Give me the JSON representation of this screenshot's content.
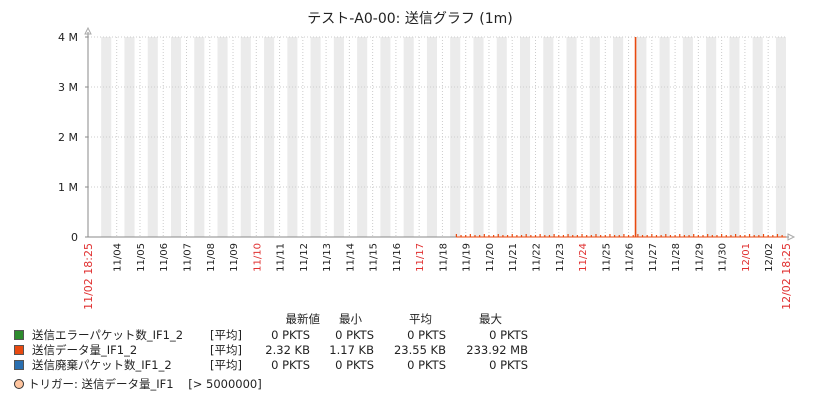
{
  "chart_data": {
    "type": "line",
    "title": "テスト-A0-00: 送信グラフ (1m)",
    "y_ticks": [
      "0",
      "1 M",
      "2 M",
      "3 M",
      "4 M"
    ],
    "ylim": [
      0,
      4000000
    ],
    "x_range": [
      "11/02 18:25",
      "12/02 18:25"
    ],
    "x_tick_labels": [
      {
        "label": "11/04",
        "day": 4,
        "weekend": false
      },
      {
        "label": "11/05",
        "day": 5,
        "weekend": false
      },
      {
        "label": "11/06",
        "day": 6,
        "weekend": false
      },
      {
        "label": "11/07",
        "day": 7,
        "weekend": false
      },
      {
        "label": "11/08",
        "day": 8,
        "weekend": false
      },
      {
        "label": "11/09",
        "day": 9,
        "weekend": false
      },
      {
        "label": "11/10",
        "day": 10,
        "weekend": true
      },
      {
        "label": "11/11",
        "day": 11,
        "weekend": false
      },
      {
        "label": "11/12",
        "day": 12,
        "weekend": false
      },
      {
        "label": "11/13",
        "day": 13,
        "weekend": false
      },
      {
        "label": "11/14",
        "day": 14,
        "weekend": false
      },
      {
        "label": "11/15",
        "day": 15,
        "weekend": false
      },
      {
        "label": "11/16",
        "day": 16,
        "weekend": false
      },
      {
        "label": "11/17",
        "day": 17,
        "weekend": true
      },
      {
        "label": "11/18",
        "day": 18,
        "weekend": false
      },
      {
        "label": "11/19",
        "day": 19,
        "weekend": false
      },
      {
        "label": "11/20",
        "day": 20,
        "weekend": false
      },
      {
        "label": "11/21",
        "day": 21,
        "weekend": false
      },
      {
        "label": "11/22",
        "day": 22,
        "weekend": false
      },
      {
        "label": "11/23",
        "day": 23,
        "weekend": false
      },
      {
        "label": "11/24",
        "day": 24,
        "weekend": true
      },
      {
        "label": "11/25",
        "day": 25,
        "weekend": false
      },
      {
        "label": "11/26",
        "day": 26,
        "weekend": false
      },
      {
        "label": "11/27",
        "day": 27,
        "weekend": false
      },
      {
        "label": "11/28",
        "day": 28,
        "weekend": false
      },
      {
        "label": "11/29",
        "day": 29,
        "weekend": false
      },
      {
        "label": "11/30",
        "day": 30,
        "weekend": false
      },
      {
        "label": "12/01",
        "day": 31,
        "weekend": true
      },
      {
        "label": "12/02",
        "day": 32,
        "weekend": false
      }
    ],
    "colors": {
      "background_band": "#ebebeb",
      "weekend_label": "#e03030",
      "series_data": "#e84a10",
      "series_packets": "#2e8b2e",
      "series_discard": "#2a6fb0",
      "trigger": "#ffc59f",
      "grid": "#cccccc"
    },
    "series": [
      {
        "name": "送信データ量_IF1_2",
        "spike": {
          "day": 26.3,
          "value": 4000000
        },
        "baseline_start_day": 18.6,
        "baseline_value": 23550
      }
    ],
    "grid": true
  },
  "legend": {
    "headers": [
      "最新値",
      "最小",
      "平均",
      "最大"
    ],
    "rows": [
      {
        "name": "送信エラーパケット数_IF1_2",
        "agg": "[平均]",
        "last": "0 PKTS",
        "min": "0 PKTS",
        "avg": "0 PKTS",
        "max": "0 PKTS",
        "color": "#2e8b2e"
      },
      {
        "name": "送信データ量_IF1_2",
        "agg": "[平均]",
        "last": "2.32 KB",
        "min": "1.17 KB",
        "avg": "23.55 KB",
        "max": "233.92 MB",
        "color": "#e84a10"
      },
      {
        "name": "送信廃棄パケット数_IF1_2",
        "agg": "[平均]",
        "last": "0 PKTS",
        "min": "0 PKTS",
        "avg": "0 PKTS",
        "max": "0 PKTS",
        "color": "#2a6fb0"
      }
    ]
  },
  "trigger": {
    "label": "トリガー: 送信データ量_IF1",
    "condition": "[> 5000000]"
  }
}
